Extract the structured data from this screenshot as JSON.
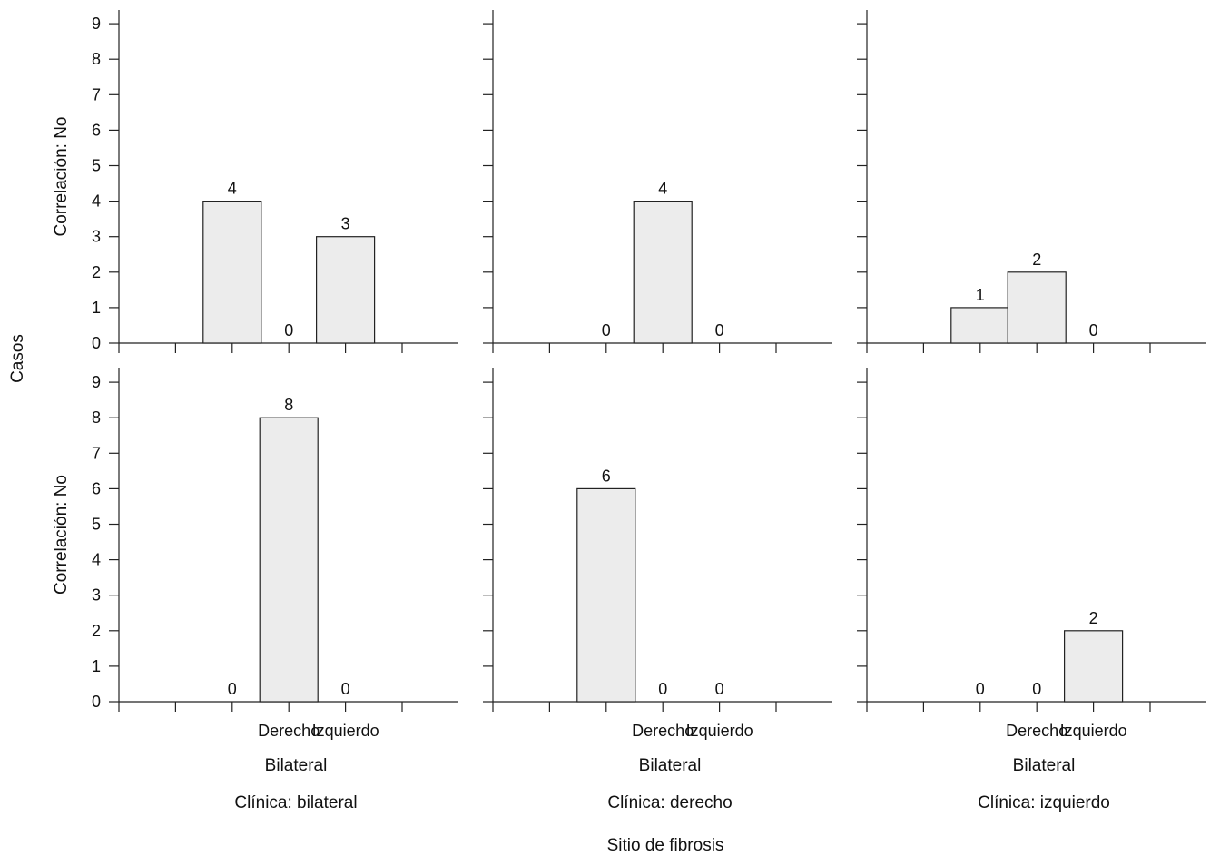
{
  "colors": {
    "bar_fill": "#ececec",
    "bar_stroke": "#222222",
    "axis": "#222222"
  },
  "chart_data": {
    "type": "bar",
    "ylabel_shared": "Casos",
    "xlabel_shared": "Sitio de fibrosis",
    "categories": [
      "Bilateral",
      "Derecho",
      "Izquierdo"
    ],
    "tick_labels": [
      "Derecho",
      "Izquierdo"
    ],
    "category_axis_title": "Bilateral",
    "ylim": [
      0,
      9
    ],
    "yticks": [
      0,
      1,
      2,
      3,
      4,
      5,
      6,
      7,
      8,
      9
    ],
    "grid": false,
    "row_labels": [
      "Correlación: No",
      "Correlación: No"
    ],
    "column_labels": [
      "Clínica: bilateral",
      "Clínica: derecho",
      "Clínica: izquierdo"
    ],
    "panels": [
      {
        "row": 0,
        "col": 0,
        "values": [
          4,
          0,
          3
        ]
      },
      {
        "row": 0,
        "col": 1,
        "values": [
          0,
          4,
          0
        ]
      },
      {
        "row": 0,
        "col": 2,
        "values": [
          1,
          2,
          0
        ]
      },
      {
        "row": 1,
        "col": 0,
        "values": [
          0,
          8,
          0
        ]
      },
      {
        "row": 1,
        "col": 1,
        "values": [
          6,
          0,
          0
        ]
      },
      {
        "row": 1,
        "col": 2,
        "values": [
          0,
          0,
          2
        ]
      }
    ]
  }
}
